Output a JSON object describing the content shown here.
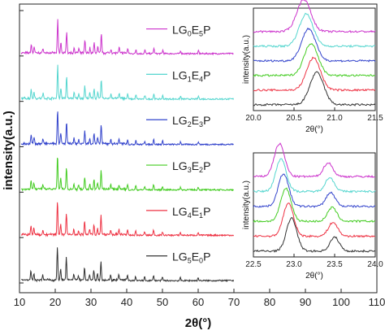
{
  "chart_data": [
    {
      "type": "line",
      "xlabel": "2θ(°)",
      "ylabel": "intensity(a.u.)",
      "xlim": [
        10,
        110
      ],
      "xticks": [
        "10",
        "20",
        "30",
        "40",
        "50",
        "60",
        "70",
        "80",
        "90",
        "100",
        "110"
      ],
      "series": [
        {
          "name": "LG0E5P",
          "legend": {
            "a": "LG",
            "s1": "0",
            "b": "E",
            "s2": "5",
            "c": "P"
          },
          "color": "#cc33cc"
        },
        {
          "name": "LG1E4P",
          "legend": {
            "a": "LG",
            "s1": "1",
            "b": "E",
            "s2": "4",
            "c": "P"
          },
          "color": "#55d6cf"
        },
        {
          "name": "LG2E3P",
          "legend": {
            "a": "LG",
            "s1": "2",
            "b": "E",
            "s2": "3",
            "c": "P"
          },
          "color": "#3344cc"
        },
        {
          "name": "LG3E2P",
          "legend": {
            "a": "LG",
            "s1": "3",
            "b": "E",
            "s2": "2",
            "c": "P"
          },
          "color": "#44cc22"
        },
        {
          "name": "LG4E1P",
          "legend": {
            "a": "LG",
            "s1": "4",
            "b": "E",
            "s2": "1",
            "c": "P"
          },
          "color": "#ee3344"
        },
        {
          "name": "LG5E0P",
          "legend": {
            "a": "LG",
            "s1": "5",
            "b": "E",
            "s2": "0",
            "c": "P"
          },
          "color": "#333333"
        }
      ],
      "peaks": [
        {
          "x": 13.2,
          "h": 0.25
        },
        {
          "x": 14.0,
          "h": 0.18
        },
        {
          "x": 16.5,
          "h": 0.14
        },
        {
          "x": 20.6,
          "h": 0.95
        },
        {
          "x": 21.5,
          "h": 0.3
        },
        {
          "x": 23.1,
          "h": 0.62
        },
        {
          "x": 25.2,
          "h": 0.15
        },
        {
          "x": 26.5,
          "h": 0.12
        },
        {
          "x": 28.2,
          "h": 0.35
        },
        {
          "x": 29.6,
          "h": 0.15
        },
        {
          "x": 30.8,
          "h": 0.28
        },
        {
          "x": 31.8,
          "h": 0.18
        },
        {
          "x": 32.8,
          "h": 0.55
        },
        {
          "x": 35.5,
          "h": 0.12
        },
        {
          "x": 37.8,
          "h": 0.14
        },
        {
          "x": 40.2,
          "h": 0.15
        },
        {
          "x": 42.5,
          "h": 0.12
        },
        {
          "x": 45.0,
          "h": 0.1
        },
        {
          "x": 47.5,
          "h": 0.15
        },
        {
          "x": 50.0,
          "h": 0.1
        },
        {
          "x": 55.0,
          "h": 0.08
        },
        {
          "x": 60.0,
          "h": 0.08
        }
      ]
    },
    {
      "type": "line",
      "xlabel": "2θ(°)",
      "ylabel": "intensity(a.u.)",
      "xlim": [
        20.0,
        21.5
      ],
      "xticks": [
        "20.0",
        "20.5",
        "21.0",
        "21.5"
      ],
      "peak_centers": [
        20.62,
        20.65,
        20.68,
        20.71,
        20.74,
        20.78
      ],
      "peak_width": 0.12
    },
    {
      "type": "line",
      "xlabel": "2θ(°)",
      "ylabel": "intensity(a.u.)",
      "xlim": [
        22.5,
        24.0
      ],
      "xticks": [
        "22.5",
        "23.0",
        "23.5",
        "24.0"
      ],
      "peak_centers": [
        22.82,
        22.84,
        22.87,
        22.9,
        22.93,
        22.97
      ],
      "second_peak_centers": [
        23.42,
        23.44,
        23.45,
        23.47,
        23.48,
        23.5
      ],
      "peak_width": 0.09
    }
  ]
}
